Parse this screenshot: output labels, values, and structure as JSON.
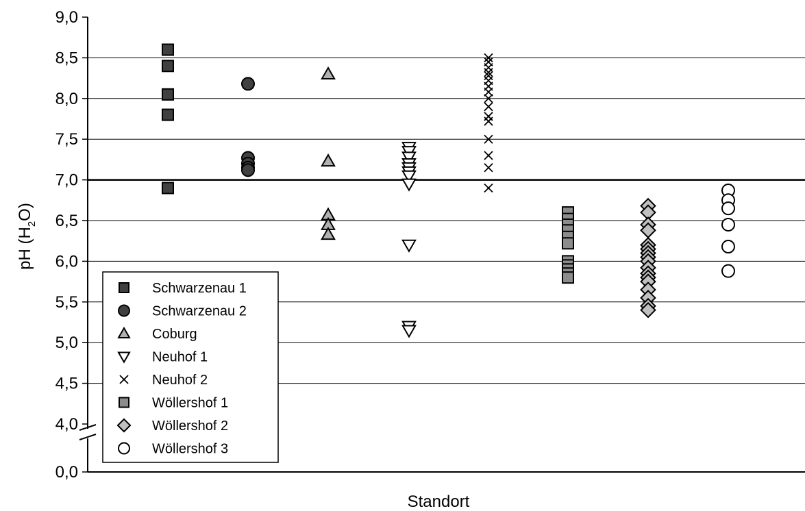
{
  "chart_data": {
    "type": "scatter",
    "title": "",
    "xlabel": "Standort",
    "ylabel_main": "pH (H",
    "ylabel_sub": "2",
    "ylabel_end": "O)",
    "ylim": [
      0,
      9
    ],
    "axis_break": {
      "from": 0,
      "to": 4
    },
    "yticks": [
      {
        "value": 0.0,
        "label": "0,0"
      },
      {
        "value": 4.0,
        "label": "4,0"
      },
      {
        "value": 4.5,
        "label": "4,5"
      },
      {
        "value": 5.0,
        "label": "5,0"
      },
      {
        "value": 5.5,
        "label": "5,5"
      },
      {
        "value": 6.0,
        "label": "6,0"
      },
      {
        "value": 6.5,
        "label": "6,5"
      },
      {
        "value": 7.0,
        "label": "7,0"
      },
      {
        "value": 7.5,
        "label": "7,5"
      },
      {
        "value": 8.0,
        "label": "8,0"
      },
      {
        "value": 8.5,
        "label": "8,5"
      },
      {
        "value": 9.0,
        "label": "9,0"
      }
    ],
    "reference_line": 7.0,
    "grid": true,
    "legend_position": "bottom-left",
    "series": [
      {
        "name": "Schwarzenau 1",
        "marker": "square",
        "fill": "#404040",
        "values": [
          8.6,
          8.4,
          8.05,
          7.8,
          6.9
        ]
      },
      {
        "name": "Schwarzenau 2",
        "marker": "circle",
        "fill": "#404040",
        "values": [
          8.18,
          7.27,
          7.2,
          7.15,
          7.12
        ]
      },
      {
        "name": "Coburg",
        "marker": "triangle-up",
        "fill": "#b0b0b0",
        "values": [
          8.3,
          7.23,
          6.57,
          6.45,
          6.33
        ]
      },
      {
        "name": "Neuhof 1",
        "marker": "triangle-down",
        "fill": "#ffffff",
        "values": [
          7.4,
          7.35,
          7.28,
          7.2,
          7.15,
          7.1,
          7.05,
          6.95,
          6.2,
          5.2,
          5.15
        ]
      },
      {
        "name": "Neuhof 2",
        "marker": "x",
        "fill": "#000000",
        "values": [
          8.5,
          8.45,
          8.38,
          8.32,
          8.28,
          8.22,
          8.15,
          8.08,
          8.0,
          7.9,
          7.78,
          7.72,
          7.5,
          7.3,
          7.15,
          6.9
        ]
      },
      {
        "name": "Wöllershof 1",
        "marker": "square",
        "fill": "#8c8c8c",
        "values": [
          6.6,
          6.52,
          6.45,
          6.38,
          6.3,
          6.22,
          6.0,
          5.95,
          5.9,
          5.85,
          5.8
        ]
      },
      {
        "name": "Wöllershof 2",
        "marker": "diamond",
        "fill": "#c0c0c0",
        "values": [
          6.68,
          6.6,
          6.45,
          6.38,
          6.2,
          6.15,
          6.1,
          6.05,
          6.0,
          5.92,
          5.85,
          5.8,
          5.75,
          5.65,
          5.55,
          5.45,
          5.4
        ]
      },
      {
        "name": "Wöllershof 3",
        "marker": "circle",
        "fill": "#ffffff",
        "values": [
          6.87,
          6.75,
          6.65,
          6.45,
          6.18,
          5.88
        ]
      }
    ]
  }
}
